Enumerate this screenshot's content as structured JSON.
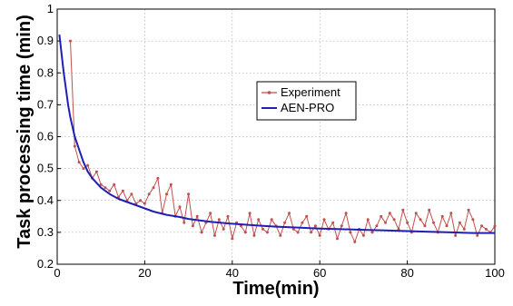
{
  "chart_data": {
    "type": "line",
    "xlabel": "Time(min)",
    "ylabel": "Task processing time (min)",
    "xlim": [
      0,
      100
    ],
    "ylim": [
      0.2,
      1
    ],
    "x_ticks": [
      "0",
      "20",
      "40",
      "60",
      "80",
      "100"
    ],
    "y_ticks": [
      "0.2",
      "0.3",
      "0.4",
      "0.5",
      "0.6",
      "0.7",
      "0.8",
      "0.9",
      "1"
    ],
    "grid": true,
    "legend_position": "center",
    "series": [
      {
        "name": "Experiment",
        "color": "#c0504d",
        "marker": "dot",
        "x": [
          3,
          4,
          5,
          6,
          7,
          8,
          9,
          10,
          11,
          12,
          13,
          14,
          15,
          16,
          17,
          18,
          19,
          20,
          21,
          22,
          23,
          24,
          25,
          26,
          27,
          28,
          29,
          30,
          31,
          32,
          33,
          34,
          35,
          36,
          37,
          38,
          39,
          40,
          41,
          42,
          43,
          44,
          45,
          46,
          47,
          48,
          49,
          50,
          51,
          52,
          53,
          54,
          55,
          56,
          57,
          58,
          59,
          60,
          61,
          62,
          63,
          64,
          65,
          66,
          67,
          68,
          69,
          70,
          71,
          72,
          73,
          74,
          75,
          76,
          77,
          78,
          79,
          80,
          81,
          82,
          83,
          84,
          85,
          86,
          87,
          88,
          89,
          90,
          91,
          92,
          93,
          94,
          95,
          96,
          97,
          98,
          99,
          100
        ],
        "y": [
          0.9,
          0.57,
          0.52,
          0.5,
          0.51,
          0.47,
          0.49,
          0.45,
          0.44,
          0.43,
          0.45,
          0.41,
          0.43,
          0.4,
          0.42,
          0.39,
          0.4,
          0.39,
          0.42,
          0.44,
          0.47,
          0.36,
          0.42,
          0.45,
          0.35,
          0.38,
          0.33,
          0.42,
          0.32,
          0.35,
          0.3,
          0.33,
          0.36,
          0.29,
          0.34,
          0.31,
          0.35,
          0.28,
          0.33,
          0.32,
          0.3,
          0.36,
          0.29,
          0.34,
          0.31,
          0.3,
          0.34,
          0.32,
          0.29,
          0.33,
          0.36,
          0.31,
          0.3,
          0.33,
          0.35,
          0.3,
          0.32,
          0.29,
          0.34,
          0.31,
          0.33,
          0.28,
          0.32,
          0.36,
          0.3,
          0.27,
          0.31,
          0.29,
          0.34,
          0.3,
          0.32,
          0.35,
          0.33,
          0.36,
          0.34,
          0.31,
          0.37,
          0.33,
          0.3,
          0.36,
          0.34,
          0.32,
          0.37,
          0.33,
          0.3,
          0.35,
          0.32,
          0.36,
          0.29,
          0.33,
          0.31,
          0.37,
          0.34,
          0.29,
          0.32,
          0.31,
          0.3,
          0.32
        ]
      },
      {
        "name": "AEN-PRO",
        "color": "#1f1fb4",
        "marker": "none",
        "x": [
          0.5,
          1,
          1.5,
          2,
          2.5,
          3,
          3.5,
          4,
          4.5,
          5,
          6,
          7,
          8,
          9,
          10,
          12,
          14,
          16,
          18,
          20,
          22,
          25,
          28,
          30,
          35,
          40,
          45,
          50,
          55,
          60,
          65,
          70,
          75,
          80,
          85,
          90,
          95,
          100
        ],
        "y": [
          0.92,
          0.86,
          0.8,
          0.75,
          0.7,
          0.66,
          0.63,
          0.6,
          0.58,
          0.56,
          0.52,
          0.49,
          0.47,
          0.455,
          0.44,
          0.42,
          0.405,
          0.395,
          0.385,
          0.375,
          0.365,
          0.355,
          0.348,
          0.342,
          0.333,
          0.327,
          0.322,
          0.318,
          0.315,
          0.312,
          0.31,
          0.308,
          0.306,
          0.304,
          0.302,
          0.3,
          0.298,
          0.298
        ]
      }
    ]
  }
}
